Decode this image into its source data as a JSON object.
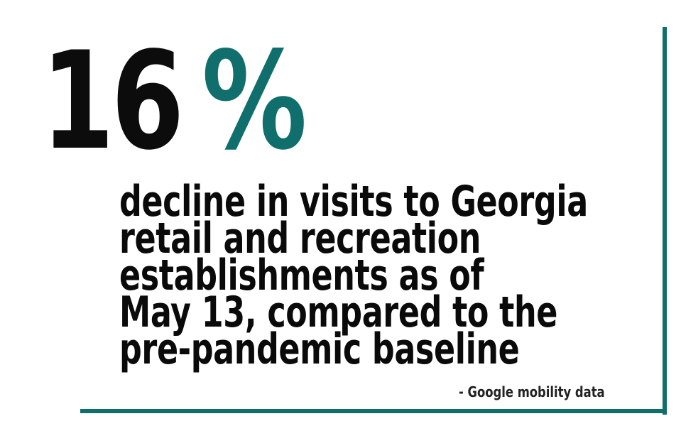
{
  "stat": {
    "number": "16",
    "unit": "%"
  },
  "description": {
    "lines": [
      "decline in visits to Georgia",
      "retail and recreation",
      "establishments as of",
      "May 13, compared to the",
      "pre-pandemic baseline"
    ]
  },
  "source": "- Google mobility data",
  "colors": {
    "accent": "#106f6c",
    "text": "#0a0a0a",
    "background": "#ffffff"
  }
}
